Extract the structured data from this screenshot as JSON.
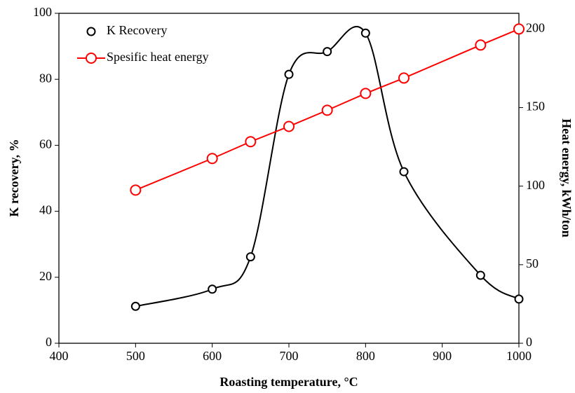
{
  "chart_data": {
    "type": "line",
    "x_label": "Roasting temperature, °C",
    "y_label": "K recovery, %",
    "y2_label": "Heat energy, kWh/ton",
    "x": [
      500,
      600,
      650,
      700,
      750,
      800,
      850,
      950,
      1000
    ],
    "xlim": [
      400,
      1000
    ],
    "xticks": [
      400,
      500,
      600,
      700,
      800,
      900,
      1000
    ],
    "ylim": [
      0,
      100
    ],
    "yticks": [
      0,
      20,
      40,
      60,
      80,
      100
    ],
    "y2lim": [
      0,
      210
    ],
    "y2ticks": [
      0,
      50,
      100,
      150,
      200
    ],
    "legend": "upper left",
    "series": [
      {
        "name": "K Recovery",
        "color": "#000000",
        "line": "smooth",
        "legend_line": false,
        "values": [
          11.2,
          16.4,
          26.2,
          81.5,
          88.4,
          94,
          52,
          20.6,
          13.4
        ]
      },
      {
        "name": "Spesific heat energy",
        "color": "#ff0000",
        "line": "straight",
        "legend_line": true,
        "axis": "y2",
        "values": [
          97.5,
          117.6,
          128.3,
          138,
          148.3,
          159,
          168.8,
          189.8,
          200
        ]
      }
    ]
  }
}
